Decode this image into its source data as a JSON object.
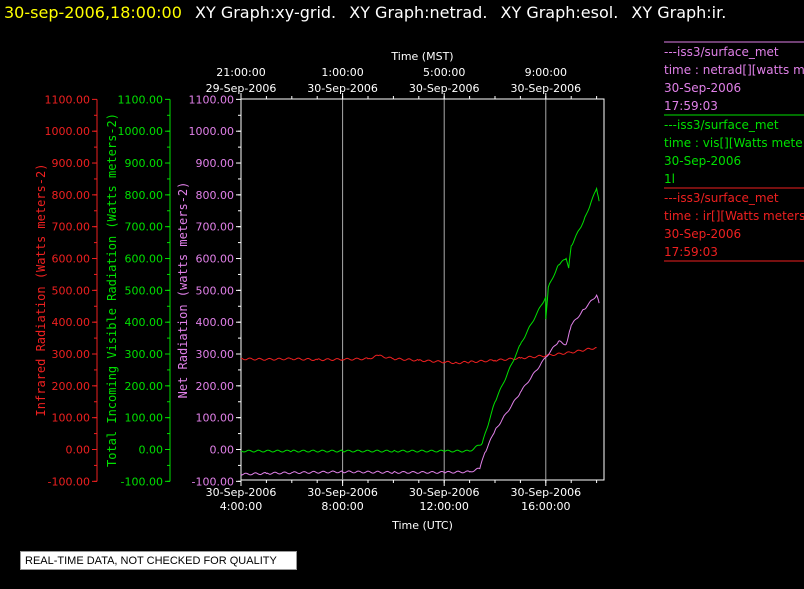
{
  "header": {
    "timestamp": "30-sep-2006,18:00:00",
    "graph_titles": [
      "XY Graph:xy-grid.",
      "XY Graph:netrad.",
      "XY Graph:esol.",
      "XY Graph:ir."
    ]
  },
  "colors": {
    "netrad": "#e080e8",
    "vis": "#00e000",
    "ir": "#ee2020",
    "grid": "#aaaaaa",
    "background": "#000000"
  },
  "legend": [
    {
      "station": "---iss3/surface_met",
      "field": "time : netrad[][watts me",
      "date": "30-Sep-2006",
      "time": "17:59:03",
      "color": "#e080e8"
    },
    {
      "station": "---iss3/surface_met",
      "field": "time : vis[][Watts mete",
      "date": "30-Sep-2006",
      "time": "1l",
      "color": "#00e000"
    },
    {
      "station": "---iss3/surface_met",
      "field": "time : ir[][Watts meters",
      "date": "30-Sep-2006",
      "time": "17:59:03",
      "color": "#ee2020"
    }
  ],
  "notice": "REAL-TIME DATA, NOT CHECKED FOR QUALITY",
  "chart_data": {
    "type": "line",
    "title": "",
    "x_bottom": {
      "label": "Time (UTC)",
      "ticks": [
        {
          "hour": 4,
          "date": "30-Sep-2006",
          "time": "4:00:00"
        },
        {
          "hour": 8,
          "date": "30-Sep-2006",
          "time": "8:00:00"
        },
        {
          "hour": 12,
          "date": "30-Sep-2006",
          "time": "12:00:00"
        },
        {
          "hour": 16,
          "date": "30-Sep-2006",
          "time": "16:00:00"
        }
      ],
      "xlim_hours_utc": [
        4,
        18.3
      ]
    },
    "x_top": {
      "label": "Time (MST)",
      "ticks": [
        {
          "hour": 4,
          "time": "21:00:00",
          "date": "29-Sep-2006"
        },
        {
          "hour": 8,
          "time": "1:00:00",
          "date": "30-Sep-2006"
        },
        {
          "hour": 12,
          "time": "5:00:00",
          "date": "30-Sep-2006"
        },
        {
          "hour": 16,
          "time": "9:00:00",
          "date": "30-Sep-2006"
        }
      ]
    },
    "y_axes": [
      {
        "label": "Infrared Radiation (Watts meters-2)",
        "color": "#ee2020",
        "ticks": [
          "1100.00",
          "1000.00",
          "900.00",
          "800.00",
          "700.00",
          "600.00",
          "500.00",
          "400.00",
          "300.00",
          "200.00",
          "100.00",
          "0.00",
          "-100.00"
        ]
      },
      {
        "label": "Total Incoming Visible Radiation (Watts meters-2)",
        "color": "#00e000",
        "ticks": [
          "1100.00",
          "1000.00",
          "900.00",
          "800.00",
          "700.00",
          "600.00",
          "500.00",
          "400.00",
          "300.00",
          "200.00",
          "100.00",
          "0.00",
          "-100.00"
        ]
      },
      {
        "label": "Net Radiation (watts meters-2)",
        "color": "#e080e8",
        "ticks": [
          "1100.00",
          "1000.00",
          "900.00",
          "800.00",
          "700.00",
          "600.00",
          "500.00",
          "400.00",
          "300.00",
          "200.00",
          "100.00",
          "0.00",
          "-100.00"
        ]
      }
    ],
    "ylim": [
      -100,
      1100
    ],
    "grid_x": true,
    "series": [
      {
        "name": "ir",
        "color": "#ee2020",
        "x": [
          4,
          5,
          6,
          7,
          8,
          9,
          9.4,
          10,
          11,
          12,
          12.5,
          13,
          14,
          15,
          16,
          17,
          18
        ],
        "y": [
          285,
          283,
          285,
          282,
          283,
          285,
          295,
          285,
          280,
          275,
          272,
          275,
          280,
          287,
          295,
          305,
          320
        ]
      },
      {
        "name": "vis",
        "color": "#00e000",
        "x": [
          4,
          6,
          8,
          10,
          12,
          13,
          13.5,
          14,
          15,
          16,
          16,
          16.1,
          16.5,
          16.8,
          16.9,
          17,
          17.5,
          18,
          18.1
        ],
        "y": [
          -5,
          -5,
          -5,
          -5,
          -5,
          -5,
          20,
          150,
          330,
          480,
          410,
          510,
          580,
          600,
          570,
          640,
          720,
          820,
          780
        ]
      },
      {
        "name": "netrad",
        "color": "#e080e8",
        "x": [
          4,
          5,
          6,
          8,
          10,
          12,
          13,
          13.4,
          13.6,
          14,
          15,
          16,
          16.5,
          16.8,
          16.9,
          17,
          17.5,
          18,
          18.1
        ],
        "y": [
          -78,
          -75,
          -73,
          -70,
          -72,
          -72,
          -70,
          -60,
          -10,
          60,
          180,
          290,
          340,
          330,
          360,
          390,
          440,
          485,
          460
        ]
      }
    ]
  }
}
